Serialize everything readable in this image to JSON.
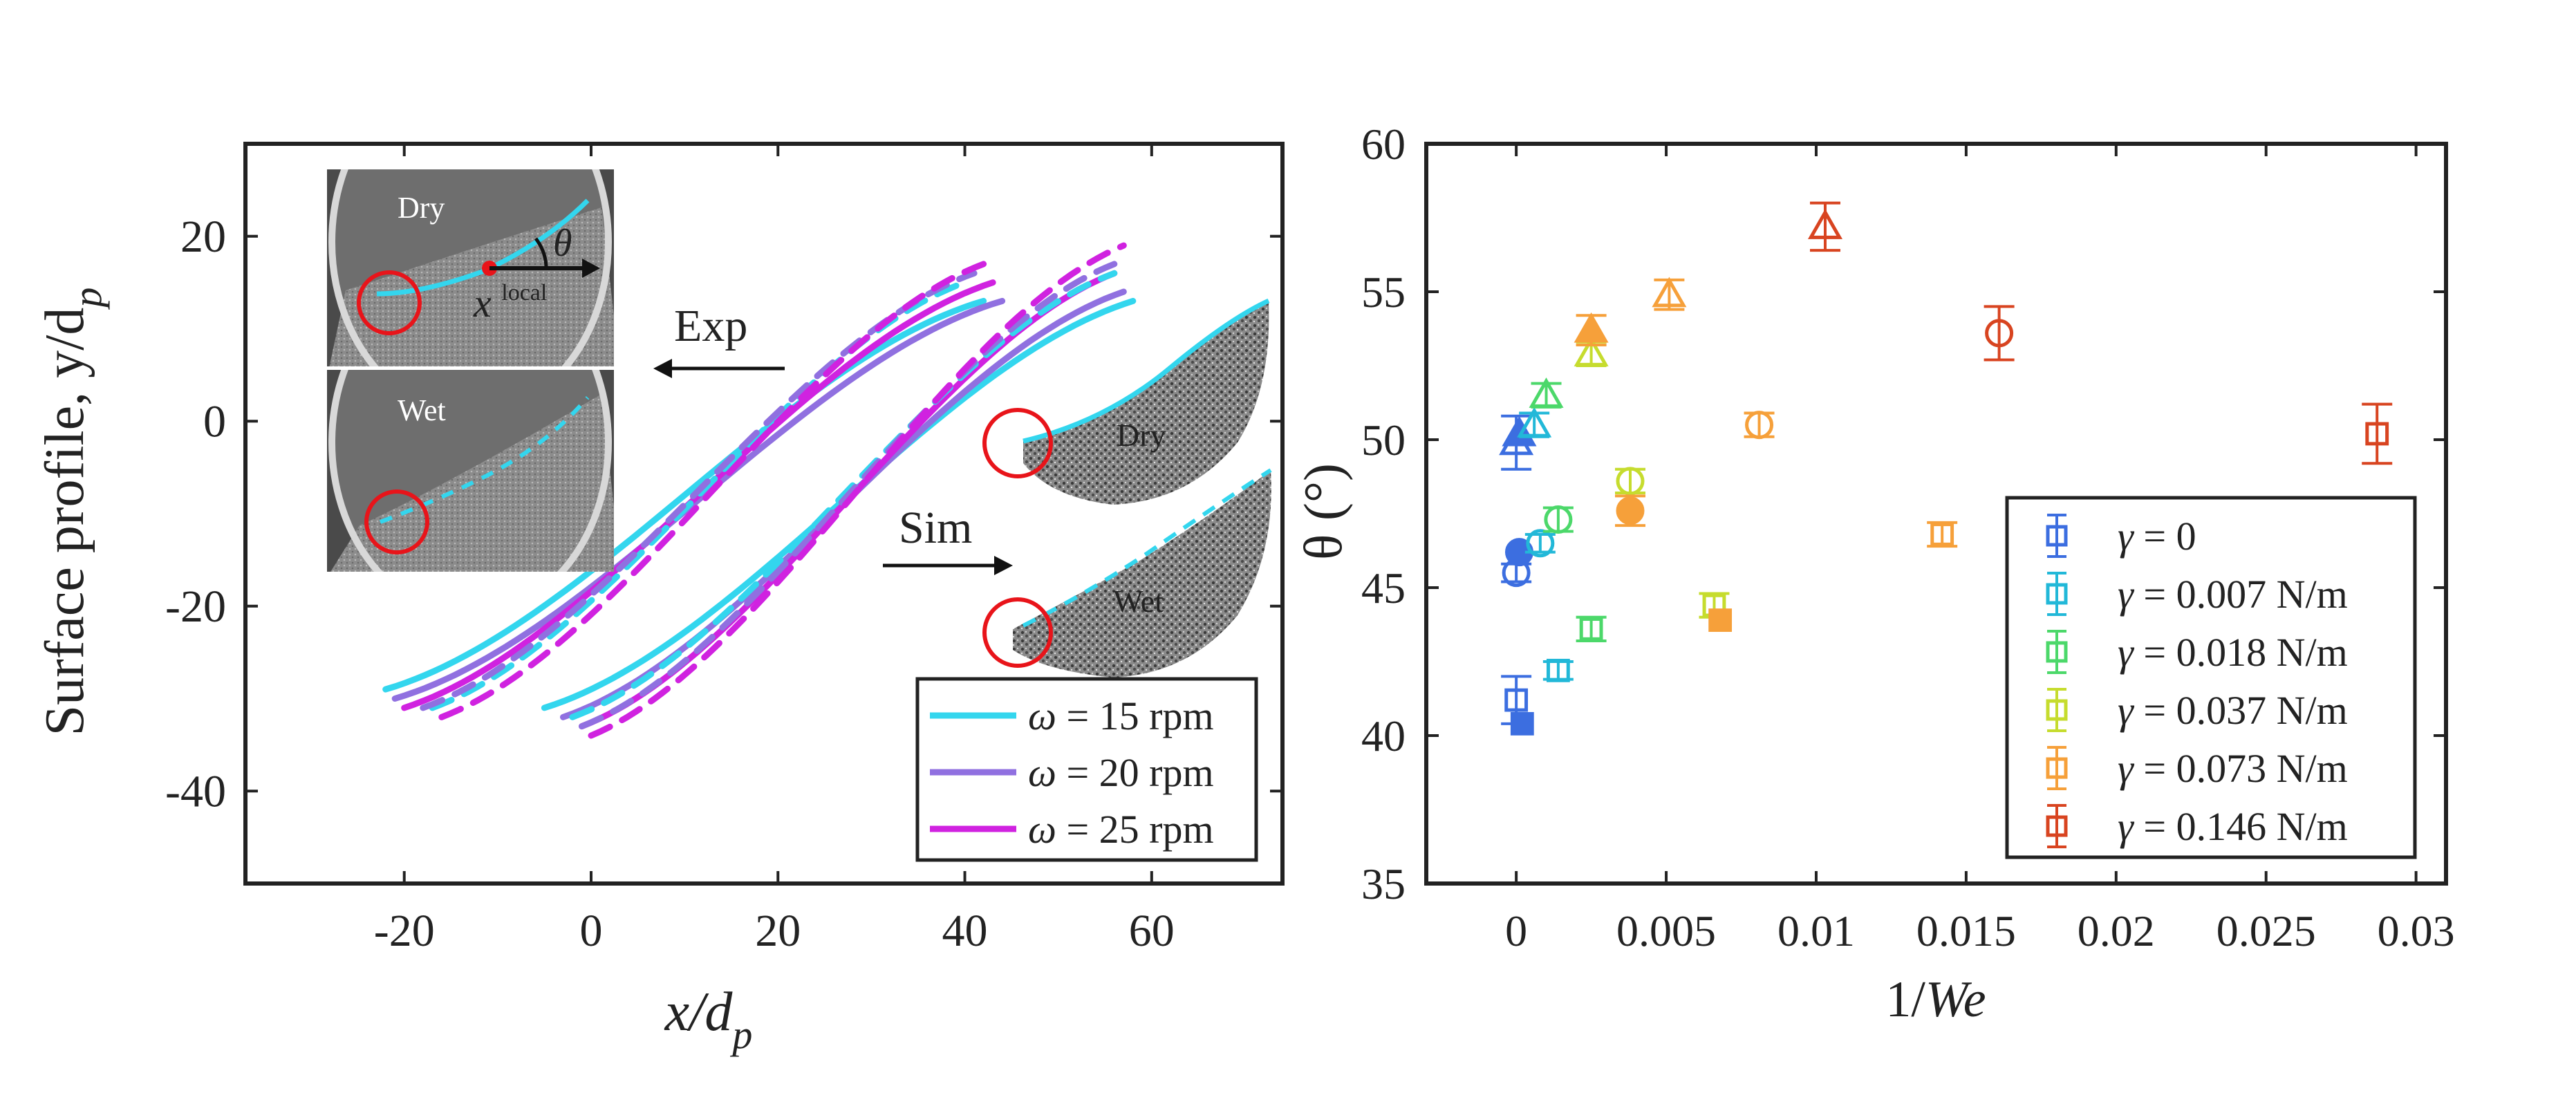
{
  "chart_data": [
    {
      "type": "line",
      "panel": "left",
      "xlabel": "x/d",
      "xlabel_sub": "p",
      "ylabel": "Surface profile, y/d",
      "ylabel_sub": "p",
      "xlim": [
        -37,
        74
      ],
      "ylim": [
        -50,
        30
      ],
      "xticks": [
        -20,
        0,
        20,
        40,
        60
      ],
      "yticks": [
        -40,
        -20,
        0,
        20
      ],
      "xtick_labels": [
        "-20",
        "0",
        "20",
        "40",
        "60"
      ],
      "ytick_labels": [
        "-40",
        "-20",
        "0",
        "20"
      ],
      "legend": {
        "position": "bottom-right",
        "entries": [
          {
            "omega": "ω",
            "label": "= 15 rpm",
            "color": "#33d6ee"
          },
          {
            "omega": "ω",
            "label": "= 20 rpm",
            "color": "#9070e0"
          },
          {
            "omega": "ω",
            "label": "= 25 rpm",
            "color": "#d022e0"
          }
        ]
      },
      "series": [
        {
          "name": "Exp Dry 15 rpm",
          "group": "exp",
          "style": "solid",
          "color": "#33d6ee",
          "start": [
            -22,
            -29
          ],
          "end": [
            42,
            13
          ]
        },
        {
          "name": "Exp Dry 20 rpm",
          "group": "exp",
          "style": "solid",
          "color": "#9070e0",
          "start": [
            -21,
            -30
          ],
          "end": [
            44,
            13
          ]
        },
        {
          "name": "Exp Dry 25 rpm",
          "group": "exp",
          "style": "solid",
          "color": "#d022e0",
          "start": [
            -20,
            -31
          ],
          "end": [
            43,
            15
          ]
        },
        {
          "name": "Exp Wet 15 rpm",
          "group": "exp",
          "style": "dashed",
          "color": "#33d6ee",
          "start": [
            -17,
            -31
          ],
          "end": [
            40,
            15
          ]
        },
        {
          "name": "Exp Wet 20 rpm",
          "group": "exp",
          "style": "dashed",
          "color": "#9070e0",
          "start": [
            -18,
            -31
          ],
          "end": [
            41,
            16
          ]
        },
        {
          "name": "Exp Wet 25 rpm",
          "group": "exp",
          "style": "dashed",
          "color": "#d022e0",
          "start": [
            -16,
            -32
          ],
          "end": [
            42,
            17
          ]
        },
        {
          "name": "Sim Dry 15 rpm",
          "group": "sim",
          "style": "solid",
          "color": "#33d6ee",
          "start": [
            -5,
            -31
          ],
          "end": [
            58,
            13
          ]
        },
        {
          "name": "Sim Dry 20 rpm",
          "group": "sim",
          "style": "solid",
          "color": "#9070e0",
          "start": [
            -3,
            -32
          ],
          "end": [
            57,
            14
          ]
        },
        {
          "name": "Sim Dry 25 rpm",
          "group": "sim",
          "style": "solid",
          "color": "#d022e0",
          "start": [
            -1,
            -33
          ],
          "end": [
            56,
            16
          ]
        },
        {
          "name": "Sim Wet 15 rpm",
          "group": "sim",
          "style": "dashed",
          "color": "#33d6ee",
          "start": [
            -2,
            -32
          ],
          "end": [
            56,
            16
          ]
        },
        {
          "name": "Sim Wet 20 rpm",
          "group": "sim",
          "style": "dashed",
          "color": "#9070e0",
          "start": [
            -1,
            -33
          ],
          "end": [
            56,
            17
          ]
        },
        {
          "name": "Sim Wet 25 rpm",
          "group": "sim",
          "style": "dashed",
          "color": "#d022e0",
          "start": [
            0,
            -34
          ],
          "end": [
            57,
            19
          ]
        }
      ],
      "annotations": {
        "exp_label": "Exp",
        "sim_label": "Sim",
        "photo_dry_label": "Dry",
        "photo_wet_label": "Wet",
        "theta_symbol": "θ",
        "x_local_symbol": "x",
        "x_local_superscript": "local",
        "sim_dry_label": "Dry",
        "sim_wet_label": "Wet"
      }
    },
    {
      "type": "scatter",
      "panel": "right",
      "xlabel": "1/",
      "xlabel_italic": "We",
      "ylabel": "θ (°)",
      "xlim": [
        -0.003,
        0.031
      ],
      "ylim": [
        35,
        60
      ],
      "xticks": [
        0,
        0.005,
        0.01,
        0.015,
        0.02,
        0.025,
        0.03
      ],
      "xtick_labels": [
        "0",
        "0.005",
        "0.01",
        "0.015",
        "0.02",
        "0.025",
        "0.03"
      ],
      "yticks": [
        35,
        40,
        45,
        50,
        55,
        60
      ],
      "ytick_labels": [
        "35",
        "40",
        "45",
        "50",
        "55",
        "60"
      ],
      "legend": {
        "position": "bottom-right",
        "entries": [
          {
            "gamma": "γ",
            "label": "= 0",
            "color": "#3c6ee0"
          },
          {
            "gamma": "γ",
            "label": "= 0.007 N/m",
            "color": "#22b8d8"
          },
          {
            "gamma": "γ",
            "label": "= 0.018 N/m",
            "color": "#4cd86a"
          },
          {
            "gamma": "γ",
            "label": "= 0.037 N/m",
            "color": "#c6dc2e"
          },
          {
            "gamma": "γ",
            "label": "= 0.073 N/m",
            "color": "#f6a03a"
          },
          {
            "gamma": "γ",
            "label": "= 0.146 N/m",
            "color": "#d84420"
          }
        ]
      },
      "points": [
        {
          "gamma": "0",
          "x": 0,
          "y": 41.2,
          "err": 0.8,
          "marker": "square",
          "filled": false,
          "color": "#3c6ee0"
        },
        {
          "gamma": "0",
          "x": 0.0002,
          "y": 40.4,
          "err": 0,
          "marker": "square",
          "filled": true,
          "color": "#3c6ee0"
        },
        {
          "gamma": "0",
          "x": 0,
          "y": 45.5,
          "err": 0.3,
          "marker": "circle",
          "filled": false,
          "color": "#3c6ee0"
        },
        {
          "gamma": "0",
          "x": 0.0001,
          "y": 46.2,
          "err": 0,
          "marker": "circle",
          "filled": true,
          "color": "#3c6ee0"
        },
        {
          "gamma": "0",
          "x": 0,
          "y": 49.9,
          "err": 0.9,
          "marker": "triangle",
          "filled": false,
          "color": "#3c6ee0"
        },
        {
          "gamma": "0",
          "x": 0.0001,
          "y": 50.2,
          "err": 0,
          "marker": "triangle",
          "filled": true,
          "color": "#3c6ee0"
        },
        {
          "gamma": "0.007 N/m",
          "x": 0.0014,
          "y": 42.2,
          "err": 0.3,
          "marker": "square",
          "filled": false,
          "color": "#22b8d8"
        },
        {
          "gamma": "0.007 N/m",
          "x": 0.0008,
          "y": 46.5,
          "err": 0.3,
          "marker": "circle",
          "filled": false,
          "color": "#22b8d8"
        },
        {
          "gamma": "0.007 N/m",
          "x": 0.0006,
          "y": 50.5,
          "err": 0.4,
          "marker": "triangle",
          "filled": false,
          "color": "#22b8d8"
        },
        {
          "gamma": "0.018 N/m",
          "x": 0.0025,
          "y": 43.6,
          "err": 0.4,
          "marker": "square",
          "filled": false,
          "color": "#4cd86a"
        },
        {
          "gamma": "0.018 N/m",
          "x": 0.0014,
          "y": 47.3,
          "err": 0.4,
          "marker": "circle",
          "filled": false,
          "color": "#4cd86a"
        },
        {
          "gamma": "0.018 N/m",
          "x": 0.001,
          "y": 51.5,
          "err": 0.4,
          "marker": "triangle",
          "filled": false,
          "color": "#4cd86a"
        },
        {
          "gamma": "0.037 N/m",
          "x": 0.0066,
          "y": 44.4,
          "err": 0.4,
          "marker": "square",
          "filled": false,
          "color": "#c6dc2e"
        },
        {
          "gamma": "0.037 N/m",
          "x": 0.0038,
          "y": 48.6,
          "err": 0.4,
          "marker": "circle",
          "filled": false,
          "color": "#c6dc2e"
        },
        {
          "gamma": "0.037 N/m",
          "x": 0.0025,
          "y": 52.9,
          "err": 0.4,
          "marker": "triangle",
          "filled": false,
          "color": "#c6dc2e"
        },
        {
          "gamma": "0.073 N/m",
          "x": 0.0068,
          "y": 43.9,
          "err": 0,
          "marker": "square",
          "filled": true,
          "color": "#f6a03a"
        },
        {
          "gamma": "0.073 N/m",
          "x": 0.0142,
          "y": 46.8,
          "err": 0.4,
          "marker": "square",
          "filled": false,
          "color": "#f6a03a"
        },
        {
          "gamma": "0.073 N/m",
          "x": 0.0038,
          "y": 47.6,
          "err": 0.5,
          "marker": "circle",
          "filled": true,
          "color": "#f6a03a"
        },
        {
          "gamma": "0.073 N/m",
          "x": 0.0081,
          "y": 50.5,
          "err": 0.4,
          "marker": "circle",
          "filled": false,
          "color": "#f6a03a"
        },
        {
          "gamma": "0.073 N/m",
          "x": 0.0025,
          "y": 53.7,
          "err": 0.5,
          "marker": "triangle",
          "filled": true,
          "color": "#f6a03a"
        },
        {
          "gamma": "0.073 N/m",
          "x": 0.0051,
          "y": 54.9,
          "err": 0.5,
          "marker": "triangle",
          "filled": false,
          "color": "#f6a03a"
        },
        {
          "gamma": "0.146 N/m",
          "x": 0.0287,
          "y": 50.2,
          "err": 1.0,
          "marker": "square",
          "filled": false,
          "color": "#d84420"
        },
        {
          "gamma": "0.146 N/m",
          "x": 0.0161,
          "y": 53.6,
          "err": 0.9,
          "marker": "circle",
          "filled": false,
          "color": "#d84420"
        },
        {
          "gamma": "0.146 N/m",
          "x": 0.0103,
          "y": 57.2,
          "err": 0.8,
          "marker": "triangle",
          "filled": false,
          "color": "#d84420"
        }
      ]
    }
  ]
}
